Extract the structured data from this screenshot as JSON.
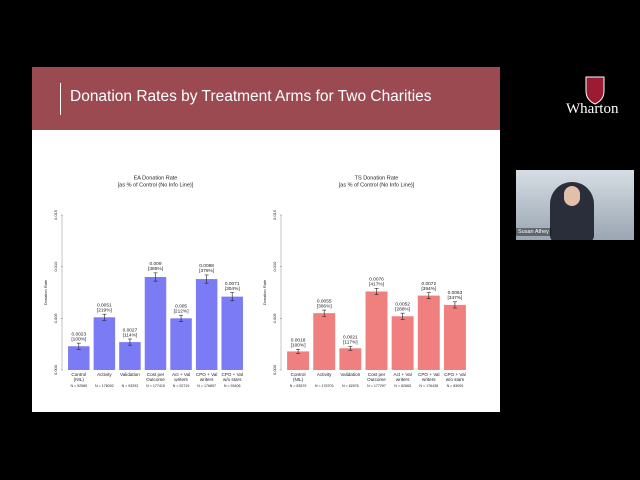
{
  "slide": {
    "title": "Donation Rates by Treatment Arms for Two Charities"
  },
  "logo": {
    "text": "Wharton"
  },
  "participant": {
    "name": "Susan Athey"
  },
  "chart_data": [
    {
      "type": "bar",
      "title": "EA Donation Rate",
      "subtitle": "[as % of Control (No Info Line)]",
      "ylabel": "Donation Rate",
      "categories": [
        "Control (NIL)",
        "Activity",
        "Validation",
        "Cost per Outcome",
        "Act + Val writers",
        "CPO + Val writers",
        "CPO + Val w/o stars"
      ],
      "n_labels": [
        "N = 92589",
        "N = 176092",
        "N = 93293",
        "N = 177415",
        "N = 92719",
        "N = 176897",
        "N = 93406"
      ],
      "values": [
        0.0023,
        0.0051,
        0.0027,
        0.009,
        0.005,
        0.0088,
        0.0071
      ],
      "errors": [
        0.0003,
        0.0003,
        0.0003,
        0.0004,
        0.0003,
        0.0004,
        0.0004
      ],
      "percent_labels": [
        "[100%]",
        "[219%]",
        "[114%]",
        "[385%]",
        "[212%]",
        "[378%]",
        "[304%]"
      ],
      "color": "#7b7bf5",
      "ylim": [
        0,
        0.015
      ],
      "yticks": [
        {
          "value": 0,
          "label": "0.000"
        },
        {
          "value": 0.005,
          "label": "0.005"
        },
        {
          "value": 0.01,
          "label": "0.010"
        },
        {
          "value": 0.015,
          "label": "0.015"
        }
      ]
    },
    {
      "type": "bar",
      "title": "TS Donation Rate",
      "subtitle": "[as % of Control (No Info Line)]",
      "ylabel": "Donation Rate",
      "categories": [
        "Control (NIL)",
        "Activity",
        "Validation",
        "Cost per Outcome",
        "Act + Val writers",
        "CPO + Val writers",
        "CPO + Val w/o stars"
      ],
      "n_labels": [
        "N = 83579",
        "N = 176703",
        "N = 82976",
        "N = 177297",
        "N = 82665",
        "N = 176438",
        "N = 83009"
      ],
      "values": [
        0.0018,
        0.0055,
        0.0021,
        0.0076,
        0.0052,
        0.0072,
        0.0063
      ],
      "errors": [
        0.0002,
        0.0003,
        0.0002,
        0.0003,
        0.0003,
        0.0003,
        0.0003
      ],
      "percent_labels": [
        "[100%]",
        "[306%]",
        "[117%]",
        "[417%]",
        "[288%]",
        "[394%]",
        "[347%]"
      ],
      "color": "#f08080",
      "ylim": [
        0,
        0.015
      ],
      "yticks": [
        {
          "value": 0,
          "label": "0.000"
        },
        {
          "value": 0.005,
          "label": "0.005"
        },
        {
          "value": 0.01,
          "label": "0.010"
        },
        {
          "value": 0.015,
          "label": "0.015"
        }
      ]
    }
  ]
}
